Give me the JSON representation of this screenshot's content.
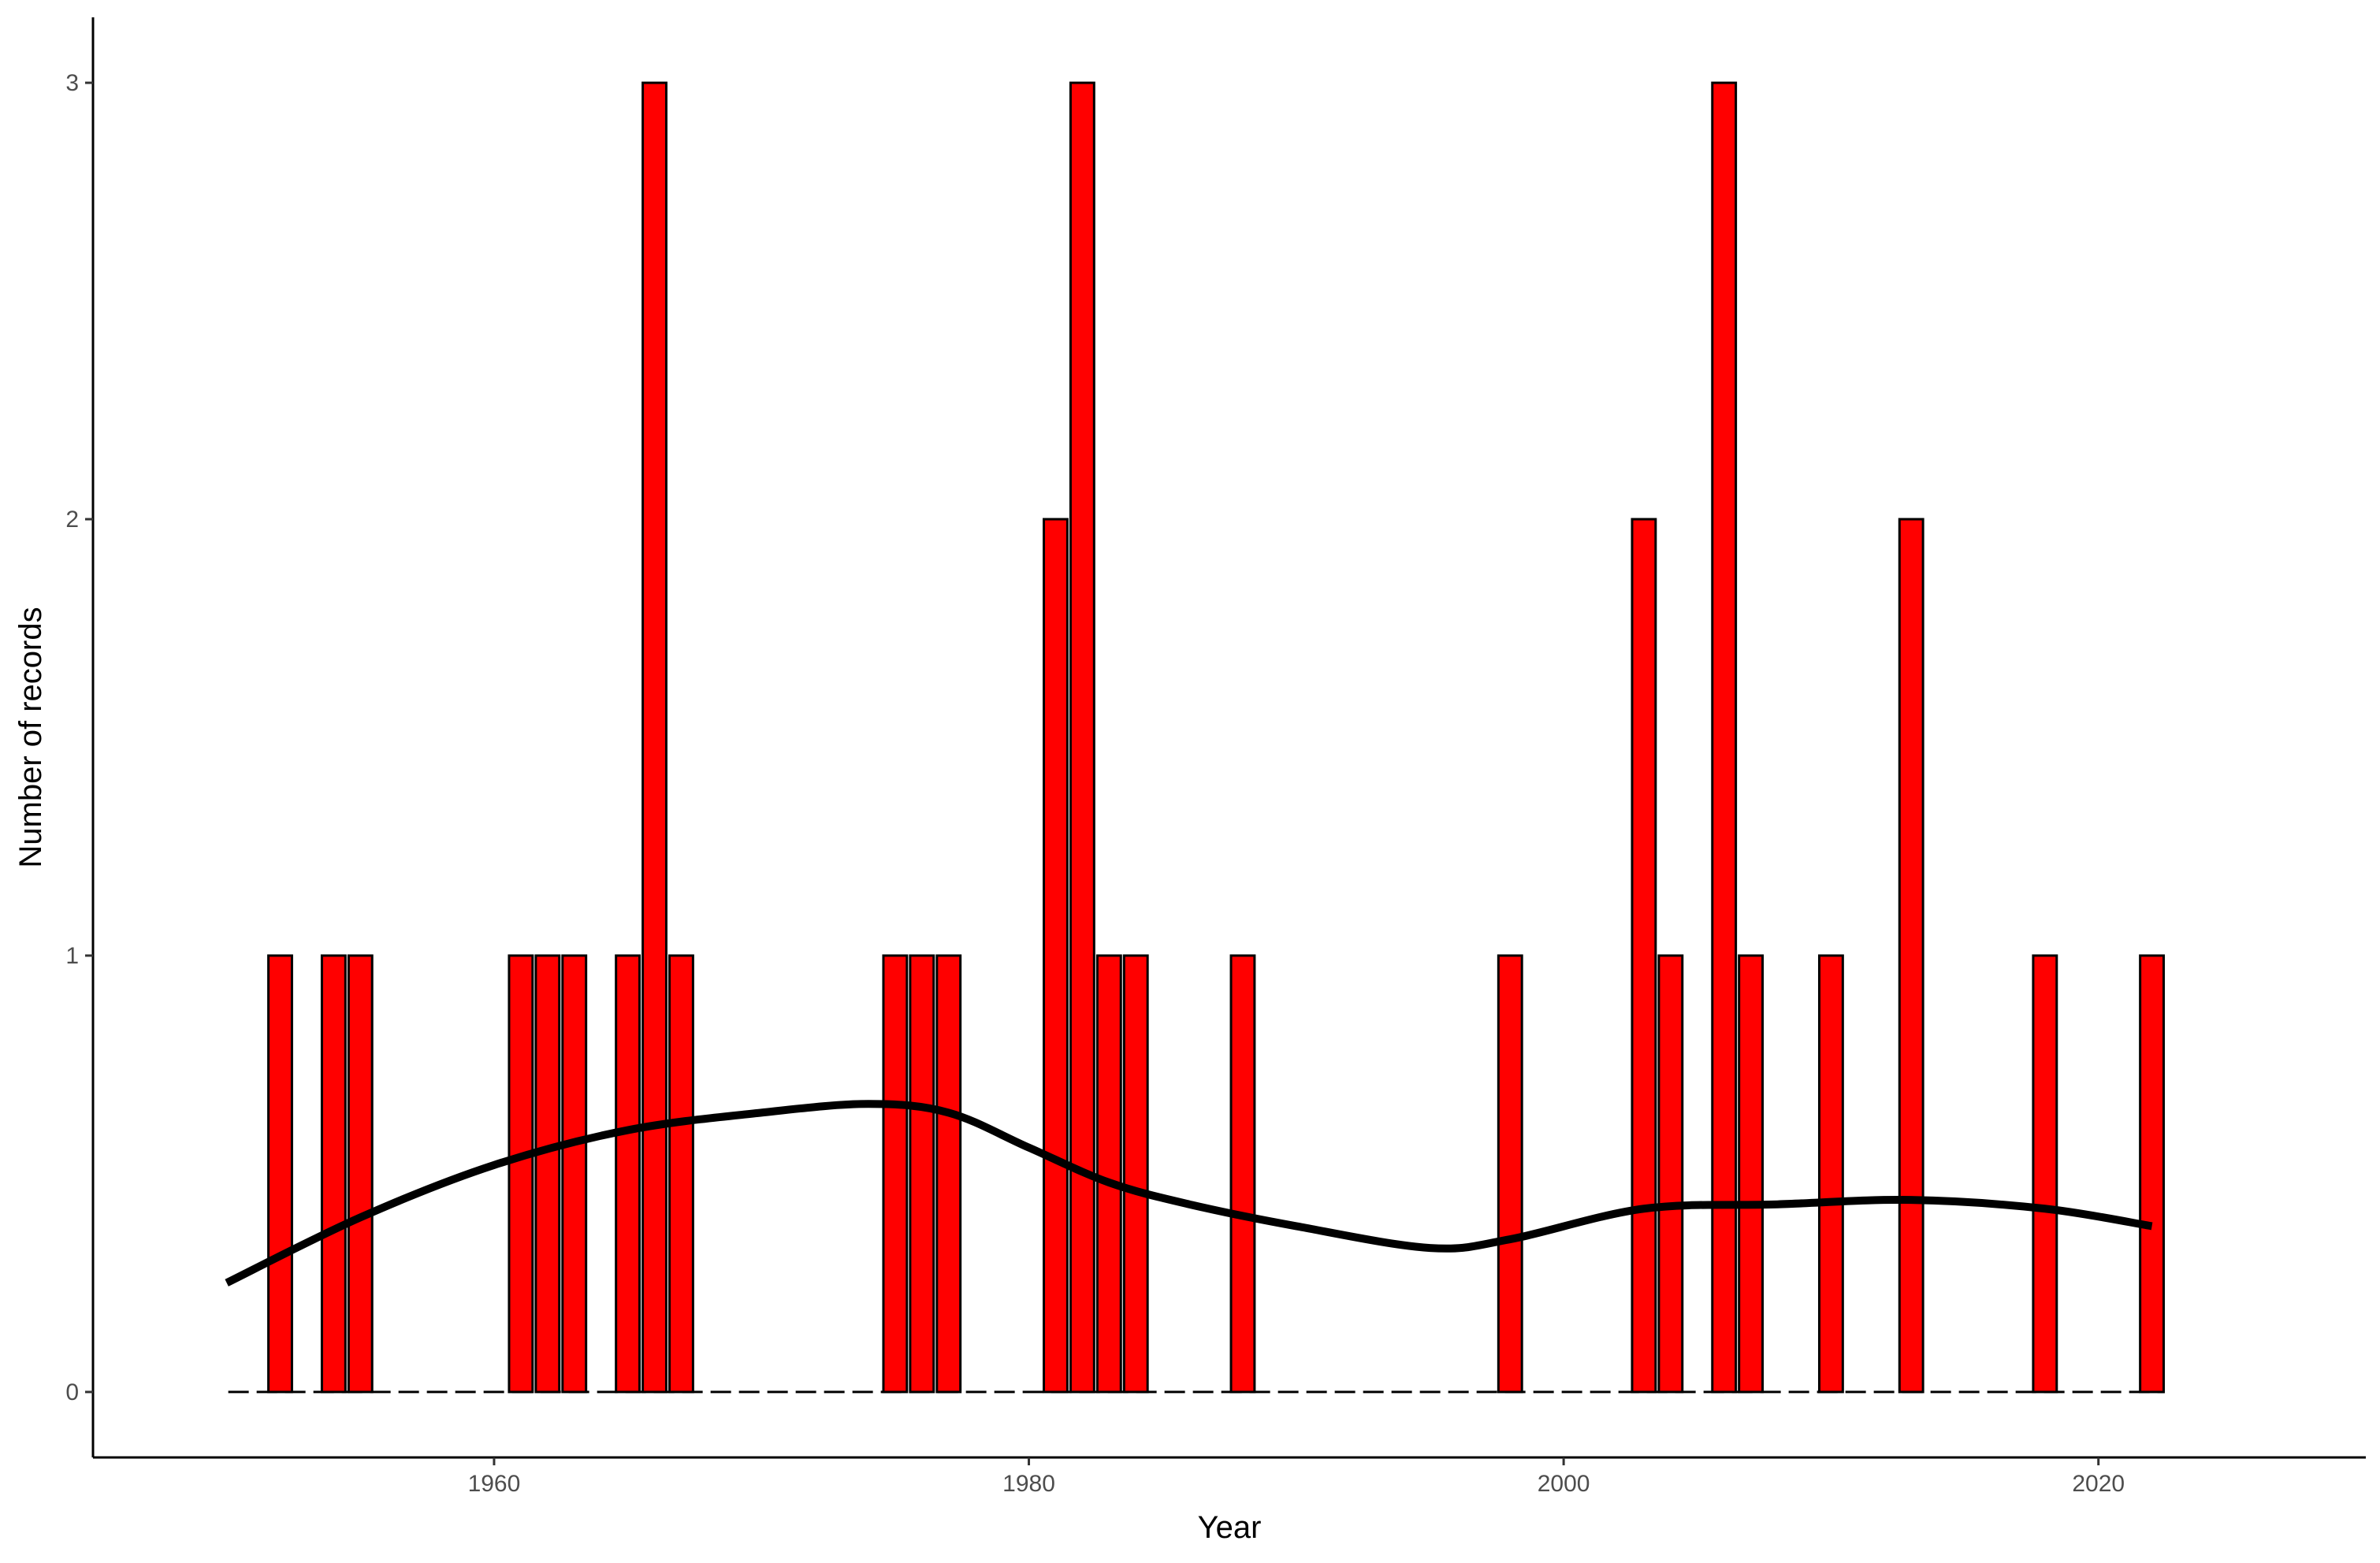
{
  "chart_data": {
    "type": "bar",
    "xlabel": "Year",
    "ylabel": "Number of records",
    "xlim": [
      1945,
      2030
    ],
    "ylim": [
      -0.15,
      3.15
    ],
    "x_ticks": [
      1960,
      1980,
      2000,
      2020
    ],
    "y_ticks": [
      0,
      1,
      2,
      3
    ],
    "grid": false,
    "legend": "none",
    "colors": {
      "bar_fill": "#ff0000",
      "bar_stroke": "#000000",
      "smooth": "#000000",
      "zero_line": "#000000"
    },
    "bars": [
      {
        "year": 1952,
        "count": 1
      },
      {
        "year": 1954,
        "count": 1
      },
      {
        "year": 1955,
        "count": 1
      },
      {
        "year": 1961,
        "count": 1
      },
      {
        "year": 1962,
        "count": 1
      },
      {
        "year": 1963,
        "count": 1
      },
      {
        "year": 1965,
        "count": 1
      },
      {
        "year": 1966,
        "count": 3
      },
      {
        "year": 1967,
        "count": 1
      },
      {
        "year": 1975,
        "count": 1
      },
      {
        "year": 1976,
        "count": 1
      },
      {
        "year": 1977,
        "count": 1
      },
      {
        "year": 1981,
        "count": 2
      },
      {
        "year": 1982,
        "count": 3
      },
      {
        "year": 1983,
        "count": 1
      },
      {
        "year": 1984,
        "count": 1
      },
      {
        "year": 1988,
        "count": 1
      },
      {
        "year": 1998,
        "count": 1
      },
      {
        "year": 2003,
        "count": 2
      },
      {
        "year": 2004,
        "count": 1
      },
      {
        "year": 2006,
        "count": 3
      },
      {
        "year": 2007,
        "count": 1
      },
      {
        "year": 2010,
        "count": 1
      },
      {
        "year": 2013,
        "count": 2
      },
      {
        "year": 2018,
        "count": 1
      },
      {
        "year": 2022,
        "count": 1
      }
    ],
    "zero_line": {
      "from_year": 1950,
      "to_year": 2022,
      "value": 0,
      "style": "dashed"
    },
    "smooth_line": {
      "x": [
        1950,
        1955,
        1960,
        1965,
        1970,
        1974,
        1977,
        1980,
        1983,
        1986,
        1990,
        1995,
        1998,
        2003,
        2008,
        2013,
        2018,
        2022
      ],
      "y": [
        0.25,
        0.4,
        0.52,
        0.6,
        0.64,
        0.66,
        0.64,
        0.56,
        0.48,
        0.43,
        0.38,
        0.33,
        0.35,
        0.42,
        0.43,
        0.44,
        0.42,
        0.38
      ]
    }
  }
}
